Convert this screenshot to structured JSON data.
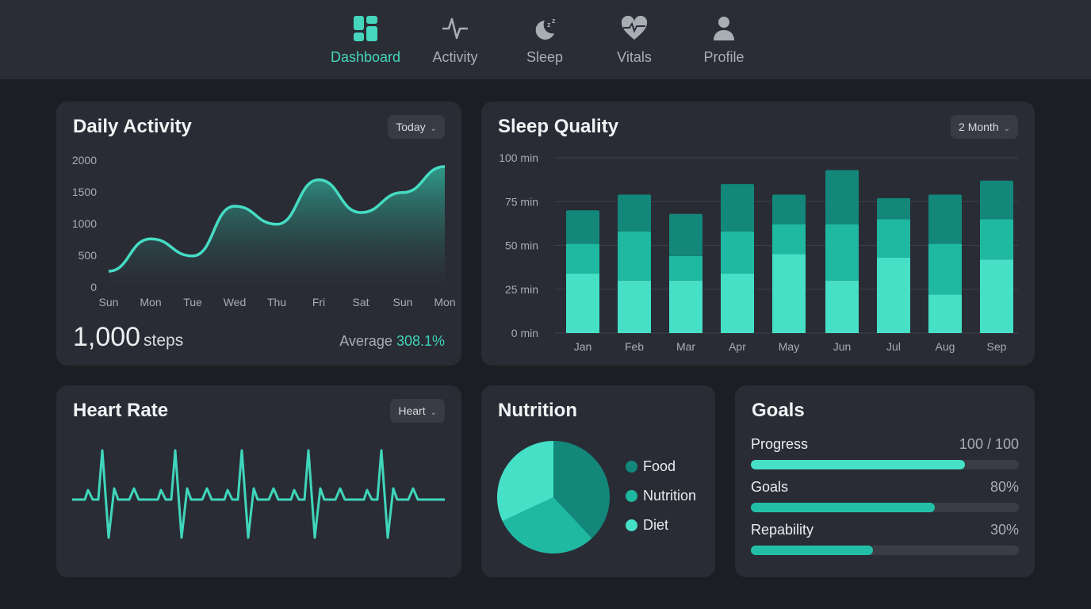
{
  "nav": {
    "items": [
      {
        "label": "Dashboard",
        "icon": "dashboard-icon",
        "active": true
      },
      {
        "label": "Activity",
        "icon": "activity-icon",
        "active": false
      },
      {
        "label": "Sleep",
        "icon": "moon-sleep-icon",
        "active": false
      },
      {
        "label": "Vitals",
        "icon": "heart-pulse-icon",
        "active": false
      },
      {
        "label": "Profile",
        "icon": "user-icon",
        "active": false
      }
    ]
  },
  "colors": {
    "accent": "#45e0c6",
    "mid": "#1fb9a2",
    "dark": "#12877a",
    "card": "#2a2c35",
    "background": "#1c1e23"
  },
  "daily_activity": {
    "title": "Daily Activity",
    "dropdown": "Today",
    "steps_value": "1,000",
    "steps_unit": "steps",
    "average_label": "Average",
    "average_value": "308.1%"
  },
  "sleep_quality": {
    "title": "Sleep Quality",
    "dropdown": "2 Month"
  },
  "heart_rate": {
    "title": "Heart Rate",
    "dropdown": "Heart"
  },
  "nutrition": {
    "title": "Nutrition"
  },
  "goals": {
    "title": "Goals",
    "items": [
      {
        "label": "Progress",
        "value": "100 / 100",
        "fill": 0.8
      },
      {
        "label": "Goals",
        "value": "80%",
        "fill": 0.685
      },
      {
        "label": "Repability",
        "value": "30%",
        "fill": 0.457
      }
    ]
  },
  "chart_data": [
    {
      "type": "area",
      "categories": [
        "Sun",
        "Mon",
        "Tue",
        "Wed",
        "Thu",
        "Fri",
        "Sat",
        "Sun",
        "Mon"
      ],
      "values": [
        250,
        760,
        490,
        1275,
        990,
        1690,
        1175,
        1490,
        1900
      ],
      "yticks": [
        "0",
        "500",
        "1000",
        "1500",
        "2000"
      ],
      "ylim": [
        0,
        2000
      ]
    },
    {
      "type": "bar",
      "stacked": true,
      "categories": [
        "Jan",
        "Feb",
        "Mar",
        "Apr",
        "May",
        "Jun",
        "Jul",
        "Aug",
        "Sep"
      ],
      "series": [
        {
          "values": [
            34,
            30,
            30,
            34,
            45,
            30,
            43,
            22,
            42
          ]
        },
        {
          "values": [
            17,
            28,
            14,
            24,
            17,
            32,
            22,
            29,
            23
          ]
        },
        {
          "values": [
            19,
            21,
            24,
            27,
            17,
            31,
            12,
            28,
            22
          ]
        }
      ],
      "yticks": [
        "0 min",
        "25 min",
        "50 min",
        "75 min",
        "100 min"
      ],
      "ylim": [
        0,
        100
      ],
      "grid": true
    },
    {
      "type": "pie",
      "legend": "right",
      "slices": [
        {
          "name": "Food",
          "value": 38
        },
        {
          "name": "Nutrition",
          "value": 30
        },
        {
          "name": "Diet",
          "value": 32
        }
      ]
    }
  ]
}
